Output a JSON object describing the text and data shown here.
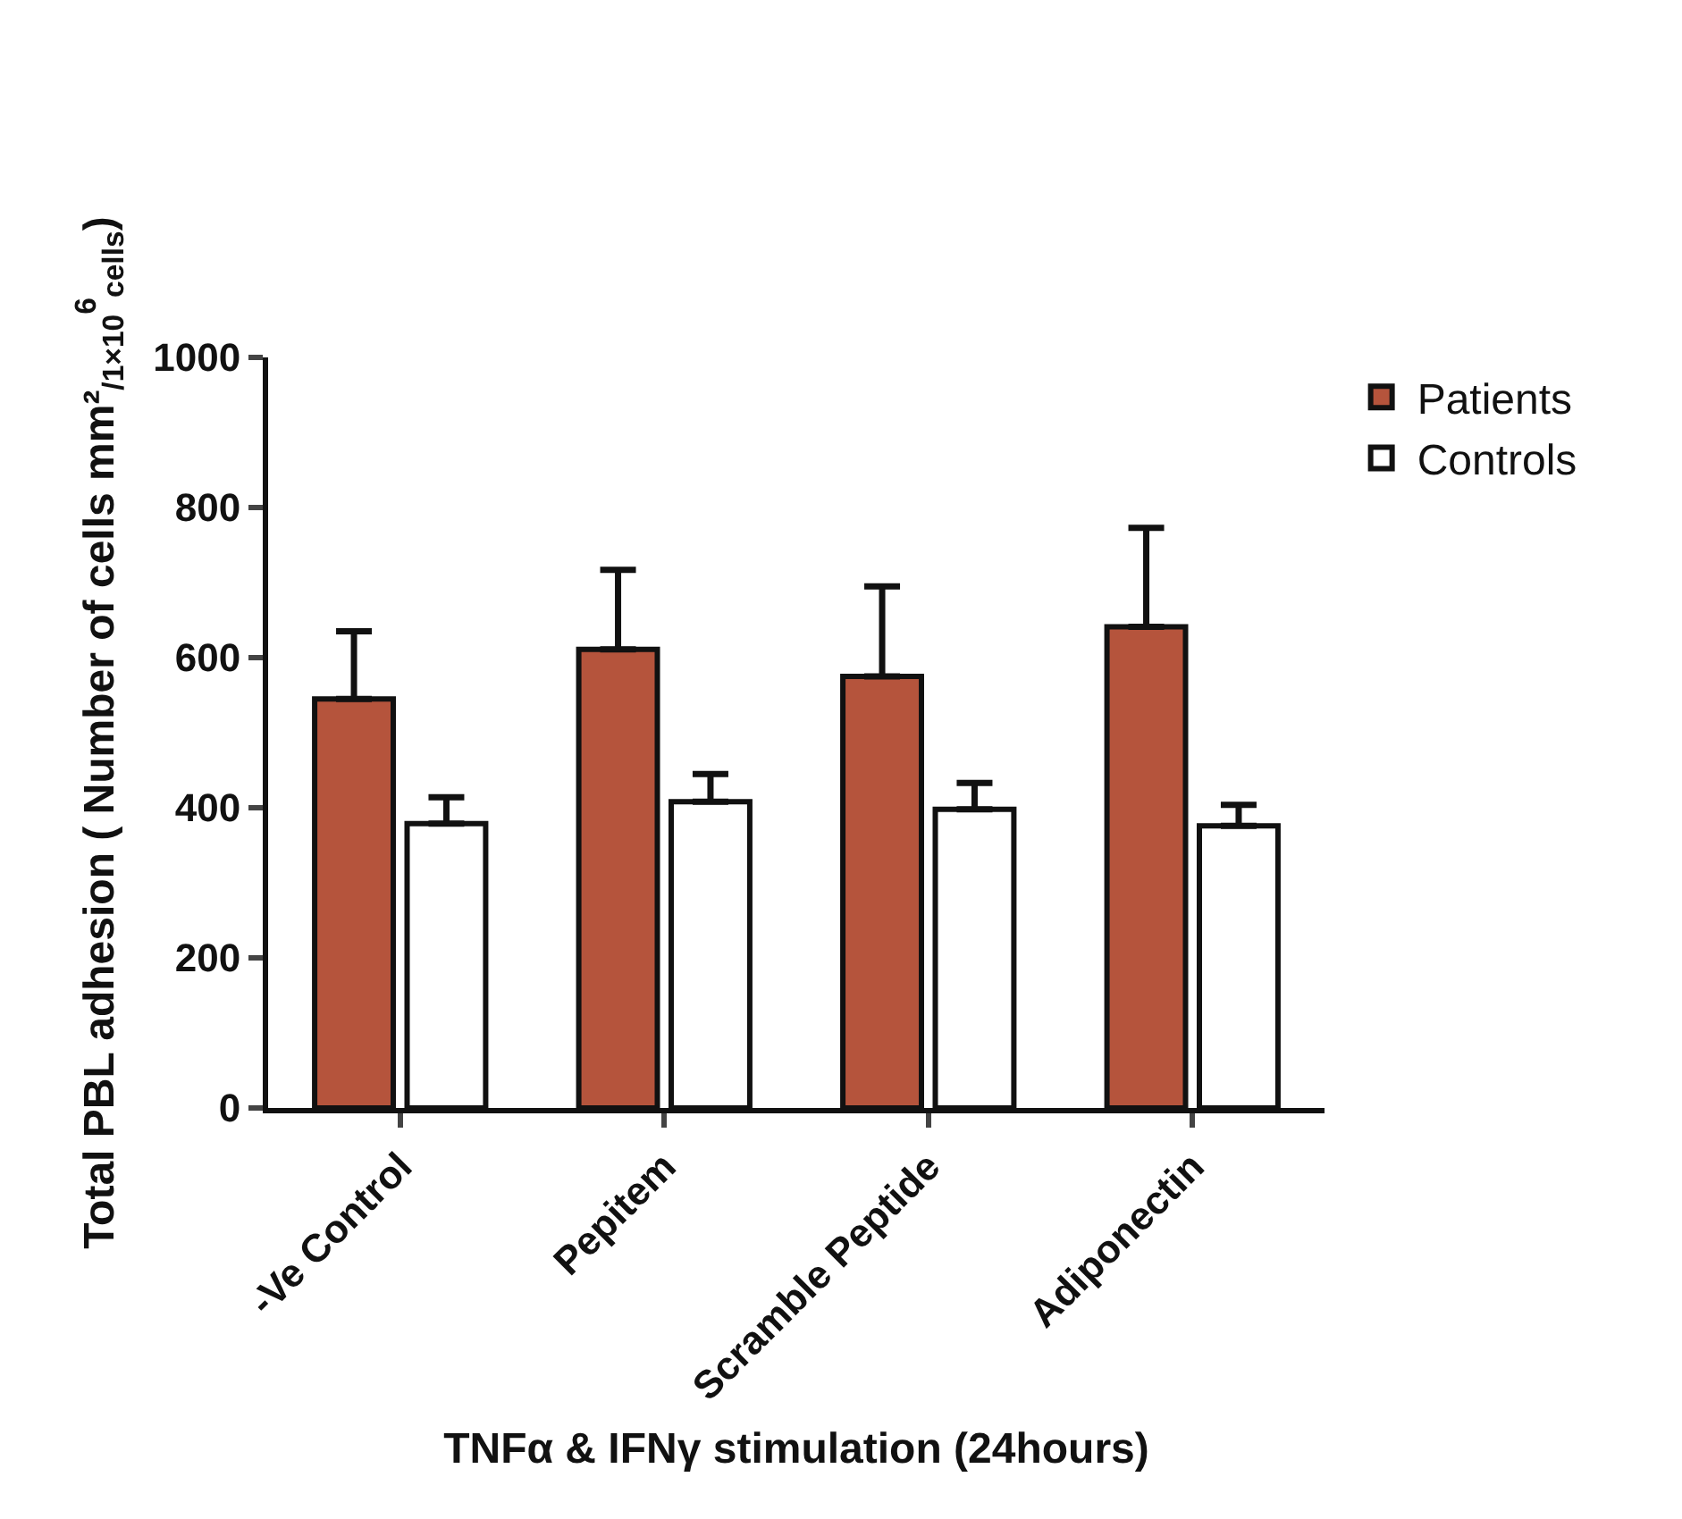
{
  "chart_data": {
    "type": "bar",
    "xlabel": "TNFα & IFNγ stimulation (24hours)",
    "ylabel": "Total PBL adhesion ( Number of cells mm²$_{/1×10}$$^{6}$$_{cells}$)",
    "categories": [
      "-Ve Control",
      "Pepitem",
      "Scramble Peptide",
      "Adiponectin"
    ],
    "series": [
      {
        "name": "Patients",
        "color": "#b5543c",
        "values": [
          545,
          611,
          575,
          641
        ],
        "errors": [
          [
            545,
            635
          ],
          [
            611,
            717
          ],
          [
            575,
            695
          ],
          [
            641,
            773
          ]
        ]
      },
      {
        "name": "Controls",
        "color": "#ffffff",
        "values": [
          379,
          408,
          398,
          376
        ],
        "errors": [
          [
            379,
            414
          ],
          [
            408,
            445
          ],
          [
            398,
            433
          ],
          [
            376,
            404
          ]
        ]
      }
    ],
    "ylim": [
      0,
      1000
    ],
    "yticks": [
      0,
      200,
      400,
      600,
      800,
      1000
    ],
    "legend": "top right"
  }
}
